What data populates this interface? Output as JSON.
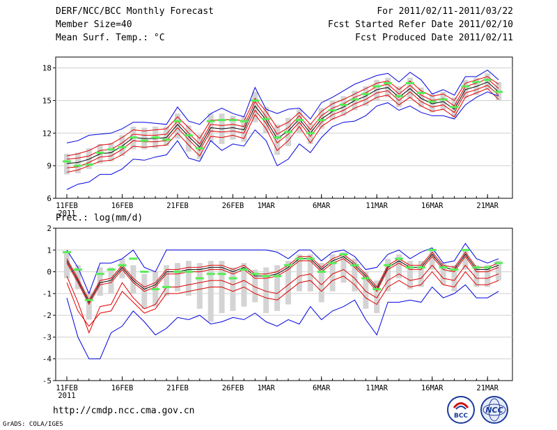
{
  "header": {
    "title": "DERF/NCC/BCC Monthly Forecast",
    "member_size": "Member Size=40",
    "variable": "Mean Surf. Temp.: °C",
    "period": "For 2011/02/11-2011/03/22",
    "refer_date": "Fcst Started Refer Date 2011/02/10",
    "produced_date": "Fcst Produced Date 2011/02/11"
  },
  "footer": {
    "url": "http://cmdp.ncc.cma.gov.cn",
    "credit": "GrADS: COLA/IGES",
    "logo_bcc": "BCC",
    "logo_ncc": "NCC"
  },
  "colors": {
    "ensemble_mean": "#000000",
    "spread_inner": "#e00000",
    "spread_outer": "#0000e0",
    "ensemble_bar": "#d4d4d4",
    "observed_marker": "#55ee55"
  },
  "chart_data": [
    {
      "type": "line",
      "id": "temperature",
      "title": "Mean Surf. Temp.: °C",
      "xlabel": "",
      "ylabel": "°C",
      "ylim": [
        6,
        19
      ],
      "yticks": [
        6,
        9,
        12,
        15,
        18
      ],
      "xticks": [
        {
          "day": 0,
          "label": "11FEB",
          "sub": "2011"
        },
        {
          "day": 5,
          "label": "16FEB"
        },
        {
          "day": 10,
          "label": "21FEB"
        },
        {
          "day": 15,
          "label": "26FEB"
        },
        {
          "day": 18,
          "label": "1MAR"
        },
        {
          "day": 23,
          "label": "6MAR"
        },
        {
          "day": 28,
          "label": "11MAR"
        },
        {
          "day": 33,
          "label": "16MAR"
        },
        {
          "day": 38,
          "label": "21MAR"
        }
      ],
      "grid": "horizontal",
      "days": [
        0,
        1,
        2,
        3,
        4,
        5,
        6,
        7,
        8,
        9,
        10,
        11,
        12,
        13,
        14,
        15,
        16,
        17,
        18,
        19,
        20,
        21,
        22,
        23,
        24,
        25,
        26,
        27,
        28,
        29,
        30,
        31,
        32,
        33,
        34,
        35,
        36,
        37,
        38,
        39
      ],
      "series": [
        {
          "name": "ensemble mean",
          "role": "mean",
          "values": [
            9.2,
            9.3,
            9.6,
            10.1,
            10.2,
            10.8,
            11.6,
            11.5,
            11.5,
            11.6,
            12.8,
            11.7,
            10.7,
            12.5,
            12.4,
            12.5,
            12.3,
            14.5,
            13.2,
            11.5,
            12.2,
            13.3,
            12.0,
            13.3,
            14.0,
            14.4,
            15.0,
            15.4,
            16.0,
            16.2,
            15.3,
            16.1,
            15.2,
            14.7,
            14.9,
            14.2,
            16.0,
            16.3,
            16.7,
            15.8
          ]
        },
        {
          "name": "upper inner",
          "role": "inner",
          "values": [
            9.6,
            9.7,
            9.9,
            10.4,
            10.5,
            11.1,
            11.9,
            11.8,
            11.8,
            11.9,
            13.1,
            12.0,
            11.0,
            12.8,
            12.7,
            12.8,
            12.6,
            14.9,
            13.5,
            11.9,
            12.5,
            13.6,
            12.3,
            13.6,
            14.3,
            14.7,
            15.3,
            15.7,
            16.3,
            16.5,
            15.6,
            16.4,
            15.5,
            15.0,
            15.2,
            14.5,
            16.3,
            16.6,
            17.0,
            16.1
          ]
        },
        {
          "name": "lower inner",
          "role": "inner",
          "values": [
            8.8,
            8.9,
            9.3,
            9.8,
            9.9,
            10.5,
            11.3,
            11.2,
            11.2,
            11.3,
            12.5,
            11.4,
            10.4,
            12.2,
            12.1,
            12.2,
            12.0,
            14.1,
            12.9,
            11.1,
            11.9,
            13.0,
            11.7,
            13.0,
            13.7,
            14.1,
            14.7,
            15.1,
            15.7,
            15.9,
            15.0,
            15.8,
            14.9,
            14.4,
            14.6,
            13.9,
            15.7,
            16.0,
            16.4,
            15.5
          ]
        },
        {
          "name": "upper red",
          "role": "inner",
          "values": [
            9.9,
            10.1,
            10.4,
            10.9,
            11.0,
            11.6,
            12.3,
            12.2,
            12.3,
            12.4,
            13.5,
            12.5,
            11.5,
            13.2,
            13.2,
            13.3,
            13.1,
            15.2,
            14.0,
            12.5,
            13.0,
            13.9,
            12.8,
            14.0,
            14.7,
            15.1,
            15.6,
            16.1,
            16.6,
            16.8,
            16.0,
            16.8,
            15.9,
            15.4,
            15.6,
            15.0,
            16.6,
            16.9,
            17.2,
            16.5
          ]
        },
        {
          "name": "lower red",
          "role": "inner",
          "values": [
            8.4,
            8.6,
            9.0,
            9.4,
            9.5,
            10.0,
            10.8,
            10.7,
            10.8,
            10.9,
            12.0,
            10.9,
            9.9,
            11.7,
            11.6,
            11.8,
            11.5,
            13.7,
            12.4,
            10.4,
            11.3,
            12.6,
            11.1,
            12.6,
            13.3,
            13.7,
            14.3,
            14.7,
            15.3,
            15.5,
            14.6,
            15.3,
            14.5,
            14.0,
            14.2,
            13.5,
            15.3,
            15.7,
            16.1,
            15.1
          ]
        },
        {
          "name": "maximum",
          "role": "outer",
          "values": [
            11.1,
            11.3,
            11.8,
            11.9,
            12.0,
            12.4,
            13.0,
            13.0,
            12.9,
            12.8,
            14.4,
            13.1,
            12.8,
            13.8,
            14.3,
            13.8,
            13.5,
            16.2,
            14.2,
            13.8,
            14.2,
            14.3,
            13.3,
            14.8,
            15.3,
            15.9,
            16.5,
            16.9,
            17.3,
            17.5,
            16.7,
            17.6,
            16.9,
            15.6,
            16.0,
            15.5,
            17.2,
            17.2,
            17.8,
            16.9
          ]
        },
        {
          "name": "minimum",
          "role": "outer",
          "values": [
            6.8,
            7.3,
            7.5,
            8.2,
            8.2,
            8.7,
            9.6,
            9.5,
            9.8,
            10.0,
            11.3,
            9.7,
            9.4,
            11.3,
            10.4,
            11.0,
            10.8,
            12.3,
            11.3,
            9.0,
            9.6,
            11.0,
            10.2,
            11.6,
            12.6,
            13.0,
            13.1,
            13.6,
            14.5,
            14.8,
            14.1,
            14.5,
            13.9,
            13.6,
            13.6,
            13.3,
            14.6,
            15.3,
            15.8,
            15.4
          ]
        }
      ],
      "ensemble_bars": {
        "low": [
          8.2,
          8.3,
          8.7,
          9.2,
          9.4,
          9.9,
          10.5,
          10.5,
          10.6,
          10.8,
          11.5,
          10.3,
          9.6,
          11.2,
          11.0,
          11.4,
          11.2,
          13.0,
          12.0,
          10.0,
          10.8,
          12.0,
          11.0,
          12.4,
          13.2,
          13.6,
          14.1,
          14.5,
          15.0,
          15.3,
          14.4,
          15.2,
          14.4,
          13.9,
          14.1,
          13.4,
          15.2,
          15.5,
          16.0,
          15.0
        ],
        "high": [
          10.1,
          10.2,
          10.6,
          11.0,
          11.1,
          11.8,
          12.6,
          12.5,
          12.6,
          12.6,
          13.8,
          12.7,
          11.9,
          13.8,
          13.8,
          13.6,
          13.5,
          15.8,
          14.4,
          12.8,
          13.4,
          14.2,
          12.9,
          14.3,
          15.0,
          15.4,
          15.9,
          16.3,
          16.9,
          17.1,
          16.3,
          17.1,
          16.2,
          15.6,
          15.8,
          15.3,
          16.9,
          17.1,
          17.5,
          16.7
        ]
      },
      "observed": [
        9.4,
        9.0,
        9.1,
        10.2,
        10.5,
        10.7,
        11.6,
        11.3,
        11.6,
        11.4,
        13.1,
        11.8,
        10.6,
        13.1,
        13.2,
        13.2,
        13.1,
        15.0,
        13.3,
        11.6,
        12.1,
        13.2,
        12.0,
        13.2,
        14.1,
        14.6,
        15.1,
        15.6,
        16.3,
        16.6,
        15.4,
        16.6,
        15.7,
        14.9,
        15.1,
        14.4,
        16.3,
        16.7,
        16.9,
        15.8
      ]
    },
    {
      "type": "line",
      "id": "precipitation",
      "title": "Prec.: log(mm/d)",
      "xlabel": "",
      "ylabel": "log(mm/d)",
      "ylim": [
        -5,
        2
      ],
      "yticks": [
        -5,
        -4,
        -3,
        -2,
        -1,
        0,
        1,
        2
      ],
      "xticks": [
        {
          "day": 0,
          "label": "11FEB",
          "sub": "2011"
        },
        {
          "day": 5,
          "label": "16FEB"
        },
        {
          "day": 10,
          "label": "21FEB"
        },
        {
          "day": 15,
          "label": "26FEB"
        },
        {
          "day": 18,
          "label": "1MAR"
        },
        {
          "day": 23,
          "label": "6MAR"
        },
        {
          "day": 28,
          "label": "11MAR"
        },
        {
          "day": 33,
          "label": "16MAR"
        },
        {
          "day": 38,
          "label": "21MAR"
        }
      ],
      "grid": "horizontal",
      "days": [
        0,
        1,
        2,
        3,
        4,
        5,
        6,
        7,
        8,
        9,
        10,
        11,
        12,
        13,
        14,
        15,
        16,
        17,
        18,
        19,
        20,
        21,
        22,
        23,
        24,
        25,
        26,
        27,
        28,
        29,
        30,
        31,
        32,
        33,
        34,
        35,
        36,
        37,
        38,
        39
      ],
      "series": [
        {
          "name": "ensemble mean",
          "role": "mean",
          "values": [
            0.5,
            -0.4,
            -1.4,
            -0.5,
            -0.4,
            0.2,
            -0.4,
            -0.8,
            -0.6,
            0.0,
            0.0,
            0.1,
            0.1,
            0.2,
            0.2,
            0.0,
            0.2,
            -0.2,
            -0.2,
            -0.1,
            0.2,
            0.6,
            0.6,
            0.1,
            0.5,
            0.7,
            0.3,
            -0.2,
            -0.8,
            0.2,
            0.5,
            0.2,
            0.2,
            0.8,
            0.2,
            0.1,
            0.8,
            0.1,
            0.1,
            0.3
          ]
        },
        {
          "name": "upper inner",
          "role": "inner",
          "values": [
            0.6,
            -0.3,
            -1.3,
            -0.4,
            -0.3,
            0.3,
            -0.3,
            -0.7,
            -0.5,
            0.1,
            0.1,
            0.2,
            0.2,
            0.3,
            0.3,
            0.1,
            0.3,
            -0.1,
            -0.1,
            0.0,
            0.3,
            0.7,
            0.7,
            0.2,
            0.6,
            0.8,
            0.4,
            -0.1,
            -0.7,
            0.3,
            0.6,
            0.3,
            0.3,
            0.9,
            0.3,
            0.2,
            0.9,
            0.2,
            0.2,
            0.4
          ]
        },
        {
          "name": "lower inner",
          "role": "inner",
          "values": [
            0.4,
            -0.5,
            -1.5,
            -0.6,
            -0.5,
            0.1,
            -0.5,
            -0.9,
            -0.7,
            -0.1,
            -0.1,
            0.0,
            0.0,
            0.1,
            0.1,
            -0.1,
            0.1,
            -0.3,
            -0.3,
            -0.2,
            0.1,
            0.5,
            0.5,
            0.0,
            0.4,
            0.6,
            0.2,
            -0.3,
            -0.9,
            0.1,
            0.4,
            0.1,
            0.1,
            0.7,
            0.1,
            0.0,
            0.7,
            0.0,
            0.0,
            0.2
          ]
        },
        {
          "name": "lower red",
          "role": "inner",
          "values": [
            -0.2,
            -1.4,
            -2.8,
            -1.6,
            -1.5,
            -0.5,
            -1.2,
            -1.7,
            -1.5,
            -0.7,
            -0.7,
            -0.6,
            -0.5,
            -0.4,
            -0.4,
            -0.6,
            -0.4,
            -0.7,
            -0.9,
            -1.0,
            -0.6,
            -0.2,
            -0.1,
            -0.6,
            -0.1,
            0.1,
            -0.3,
            -0.9,
            -1.2,
            -0.4,
            -0.1,
            -0.4,
            -0.3,
            0.3,
            -0.3,
            -0.4,
            0.3,
            -0.3,
            -0.3,
            -0.1
          ]
        },
        {
          "name": "lower red 2",
          "role": "inner",
          "values": [
            -0.5,
            -1.8,
            -2.5,
            -1.9,
            -1.8,
            -0.9,
            -1.4,
            -1.9,
            -1.7,
            -1.0,
            -1.0,
            -0.9,
            -0.8,
            -0.7,
            -0.7,
            -0.9,
            -0.7,
            -1.0,
            -1.2,
            -1.3,
            -0.9,
            -0.5,
            -0.4,
            -0.9,
            -0.4,
            -0.2,
            -0.6,
            -1.2,
            -1.5,
            -0.7,
            -0.4,
            -0.7,
            -0.6,
            0.0,
            -0.6,
            -0.7,
            0.0,
            -0.6,
            -0.6,
            -0.4
          ]
        },
        {
          "name": "maximum",
          "role": "outer",
          "values": [
            1.0,
            0.2,
            -1.0,
            0.4,
            0.4,
            0.6,
            1.0,
            0.2,
            0.0,
            1.0,
            1.0,
            1.0,
            1.0,
            1.0,
            1.0,
            1.0,
            1.0,
            1.0,
            1.0,
            0.9,
            0.6,
            1.0,
            1.0,
            0.5,
            0.9,
            1.0,
            0.7,
            0.1,
            0.2,
            0.8,
            1.0,
            0.6,
            0.9,
            1.1,
            0.4,
            0.5,
            1.3,
            0.6,
            0.4,
            0.6
          ]
        },
        {
          "name": "minimum",
          "role": "outer",
          "values": [
            -1.2,
            -3.0,
            -4.0,
            -4.0,
            -2.8,
            -2.5,
            -1.8,
            -2.3,
            -2.9,
            -2.6,
            -2.1,
            -2.2,
            -2.0,
            -2.4,
            -2.3,
            -2.1,
            -2.2,
            -1.9,
            -2.3,
            -2.5,
            -2.2,
            -2.4,
            -1.6,
            -2.2,
            -1.8,
            -1.6,
            -1.3,
            -2.2,
            -2.9,
            -1.4,
            -1.4,
            -1.3,
            -1.4,
            -0.7,
            -1.2,
            -1.0,
            -0.6,
            -1.2,
            -1.2,
            -0.9
          ]
        }
      ],
      "ensemble_bars": {
        "low": [
          -0.3,
          -0.8,
          -2.2,
          -1.1,
          -1.0,
          -0.3,
          -1.0,
          -1.7,
          -1.6,
          -1.1,
          -0.9,
          -1.1,
          -1.7,
          -2.3,
          -1.9,
          -1.8,
          -1.6,
          -1.4,
          -1.9,
          -1.8,
          -1.5,
          -0.9,
          -0.9,
          -1.4,
          -0.9,
          -0.5,
          -0.9,
          -1.7,
          -1.9,
          -0.9,
          -0.3,
          -0.8,
          -0.7,
          0.1,
          -0.6,
          -0.9,
          0.1,
          -0.7,
          -0.7,
          -0.4
        ],
        "high": [
          0.9,
          0.3,
          -0.9,
          0.2,
          0.2,
          0.6,
          0.3,
          -0.1,
          0.0,
          0.3,
          0.4,
          0.5,
          0.4,
          0.5,
          0.5,
          0.2,
          0.4,
          0.1,
          0.2,
          0.3,
          0.5,
          0.8,
          0.8,
          0.4,
          0.8,
          0.9,
          0.6,
          0.0,
          -0.4,
          0.6,
          0.8,
          0.5,
          0.5,
          1.0,
          0.4,
          0.3,
          1.0,
          0.3,
          0.3,
          0.5
        ]
      },
      "observed": [
        0.9,
        0.1,
        -1.3,
        -0.1,
        0.1,
        0.3,
        0.6,
        0.0,
        -0.8,
        -0.7,
        0.0,
        0.0,
        -0.3,
        -0.1,
        -0.1,
        -0.3,
        0.1,
        -0.1,
        -0.2,
        -0.2,
        0.3,
        0.6,
        0.6,
        0.0,
        0.4,
        0.8,
        0.3,
        -0.3,
        -0.8,
        0.3,
        0.6,
        0.2,
        0.2,
        1.0,
        0.2,
        0.1,
        1.0,
        0.2,
        0.2,
        0.4
      ]
    }
  ]
}
